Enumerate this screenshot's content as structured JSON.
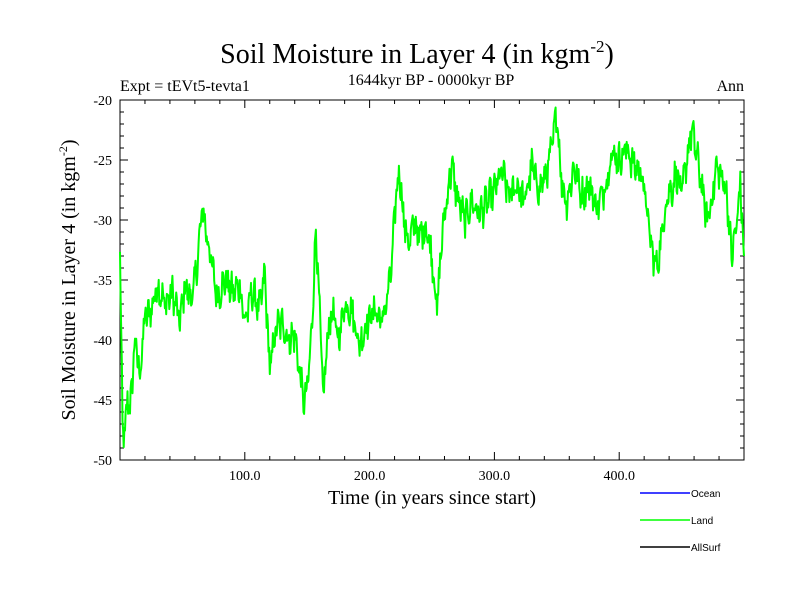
{
  "chart_data": {
    "type": "line",
    "title": "Soil Moisture in Layer 4 (in kgm",
    "title_sup": "-2",
    "title_close": ")",
    "subtitle": "1644kyr BP - 0000kyr BP",
    "expt_label": "Expt = tEVt5-tevta1",
    "season_label": "Ann",
    "xlabel": "Time (in years since start)",
    "ylabel": "Soil Moisture in Layer 4 (in kgm",
    "ylabel_sup": "-2",
    "ylabel_close": ")",
    "xlim": [
      0,
      500
    ],
    "ylim": [
      -50,
      -20
    ],
    "x_ticks": [
      100,
      200,
      300,
      400
    ],
    "x_tick_labels": [
      "100.0",
      "200.0",
      "300.0",
      "400.0"
    ],
    "y_ticks": [
      -50,
      -45,
      -40,
      -35,
      -30,
      -25,
      -20
    ],
    "y_tick_labels": [
      "-50",
      "-45",
      "-40",
      "-35",
      "-30",
      "-25",
      "-20"
    ],
    "series": [
      {
        "name": "Ocean",
        "color": "#0000ff",
        "anchors": []
      },
      {
        "name": "Land",
        "color": "#00ff00",
        "anchors": [
          [
            0,
            -33.0
          ],
          [
            2,
            -47.0
          ],
          [
            4,
            -48.3
          ],
          [
            6,
            -44.5
          ],
          [
            8,
            -46.0
          ],
          [
            12,
            -40.0
          ],
          [
            16,
            -43.0
          ],
          [
            20,
            -38.0
          ],
          [
            25,
            -37.5
          ],
          [
            30,
            -35.5
          ],
          [
            36,
            -37.0
          ],
          [
            42,
            -36.0
          ],
          [
            48,
            -38.5
          ],
          [
            52,
            -35.5
          ],
          [
            58,
            -36.5
          ],
          [
            62,
            -33.5
          ],
          [
            66,
            -29.0
          ],
          [
            70,
            -31.5
          ],
          [
            74,
            -34.0
          ],
          [
            78,
            -36.5
          ],
          [
            84,
            -35.0
          ],
          [
            90,
            -36.0
          ],
          [
            96,
            -35.5
          ],
          [
            100,
            -38.5
          ],
          [
            106,
            -36.0
          ],
          [
            112,
            -37.5
          ],
          [
            116,
            -34.5
          ],
          [
            120,
            -42.5
          ],
          [
            125,
            -39.0
          ],
          [
            130,
            -38.5
          ],
          [
            135,
            -40.0
          ],
          [
            140,
            -39.5
          ],
          [
            145,
            -43.5
          ],
          [
            148,
            -45.5
          ],
          [
            152,
            -42.0
          ],
          [
            155,
            -36.0
          ],
          [
            157,
            -30.5
          ],
          [
            160,
            -38.0
          ],
          [
            163,
            -45.0
          ],
          [
            166,
            -40.0
          ],
          [
            170,
            -37.5
          ],
          [
            175,
            -40.0
          ],
          [
            180,
            -37.0
          ],
          [
            186,
            -37.5
          ],
          [
            192,
            -40.5
          ],
          [
            198,
            -38.5
          ],
          [
            204,
            -37.5
          ],
          [
            210,
            -38.5
          ],
          [
            215,
            -36.0
          ],
          [
            218,
            -33.5
          ],
          [
            221,
            -28.0
          ],
          [
            224,
            -26.0
          ],
          [
            228,
            -30.5
          ],
          [
            232,
            -32.0
          ],
          [
            236,
            -30.0
          ],
          [
            240,
            -31.5
          ],
          [
            245,
            -30.5
          ],
          [
            250,
            -33.0
          ],
          [
            254,
            -37.5
          ],
          [
            258,
            -31.5
          ],
          [
            262,
            -28.0
          ],
          [
            266,
            -25.5
          ],
          [
            270,
            -28.0
          ],
          [
            276,
            -30.0
          ],
          [
            282,
            -28.5
          ],
          [
            288,
            -29.5
          ],
          [
            294,
            -28.5
          ],
          [
            300,
            -27.5
          ],
          [
            306,
            -26.0
          ],
          [
            312,
            -28.0
          ],
          [
            318,
            -27.0
          ],
          [
            324,
            -28.5
          ],
          [
            330,
            -25.5
          ],
          [
            336,
            -27.5
          ],
          [
            342,
            -26.0
          ],
          [
            346,
            -24.0
          ],
          [
            350,
            -21.0
          ],
          [
            354,
            -27.0
          ],
          [
            358,
            -28.5
          ],
          [
            364,
            -25.5
          ],
          [
            370,
            -28.0
          ],
          [
            376,
            -27.0
          ],
          [
            382,
            -29.0
          ],
          [
            388,
            -27.5
          ],
          [
            394,
            -24.5
          ],
          [
            400,
            -25.0
          ],
          [
            406,
            -24.0
          ],
          [
            412,
            -25.5
          ],
          [
            418,
            -26.0
          ],
          [
            422,
            -29.0
          ],
          [
            426,
            -32.5
          ],
          [
            430,
            -34.0
          ],
          [
            434,
            -31.5
          ],
          [
            438,
            -28.0
          ],
          [
            442,
            -27.5
          ],
          [
            446,
            -26.0
          ],
          [
            450,
            -28.0
          ],
          [
            454,
            -25.0
          ],
          [
            458,
            -22.5
          ],
          [
            462,
            -24.5
          ],
          [
            466,
            -27.0
          ],
          [
            470,
            -30.0
          ],
          [
            474,
            -28.5
          ],
          [
            478,
            -25.5
          ],
          [
            482,
            -26.5
          ],
          [
            486,
            -27.5
          ],
          [
            490,
            -33.0
          ],
          [
            494,
            -30.5
          ],
          [
            497,
            -27.0
          ],
          [
            500,
            -33.0
          ]
        ]
      },
      {
        "name": "AllSurf",
        "color": "#000000",
        "anchors": []
      }
    ]
  }
}
